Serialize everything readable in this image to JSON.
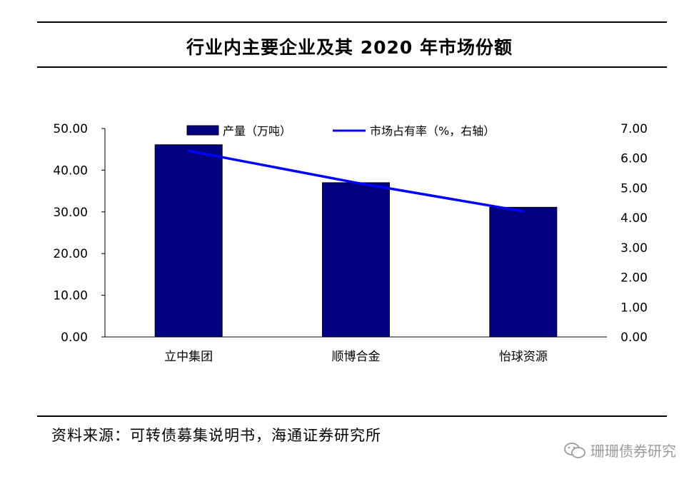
{
  "page": {
    "title": "行业内主要企业及其 2020 年市场份额",
    "source": "资料来源：可转债募集说明书，海通证券研究所",
    "watermark_text": "珊珊债券研究",
    "watermark_icon": "wechat-icon"
  },
  "chart_data": {
    "type": "bar",
    "categories": [
      "立中集团",
      "顺博合金",
      "怡球资源"
    ],
    "series": [
      {
        "name": "产量（万吨）",
        "kind": "bar",
        "axis": "left",
        "color": "#000080",
        "values": [
          46.1,
          37.0,
          31.1
        ]
      },
      {
        "name": "市场占有率（%，右轴）",
        "kind": "line",
        "axis": "right",
        "color": "#0000ff",
        "values": [
          6.25,
          5.18,
          4.22
        ]
      }
    ],
    "y_left": {
      "min": 0,
      "max": 50,
      "ticks": [
        "0.00",
        "10.00",
        "20.00",
        "30.00",
        "40.00",
        "50.00"
      ]
    },
    "y_right": {
      "min": 0,
      "max": 7,
      "ticks": [
        "0.00",
        "1.00",
        "2.00",
        "3.00",
        "4.00",
        "5.00",
        "6.00",
        "7.00"
      ]
    },
    "grid": false,
    "legend_position": "top"
  }
}
